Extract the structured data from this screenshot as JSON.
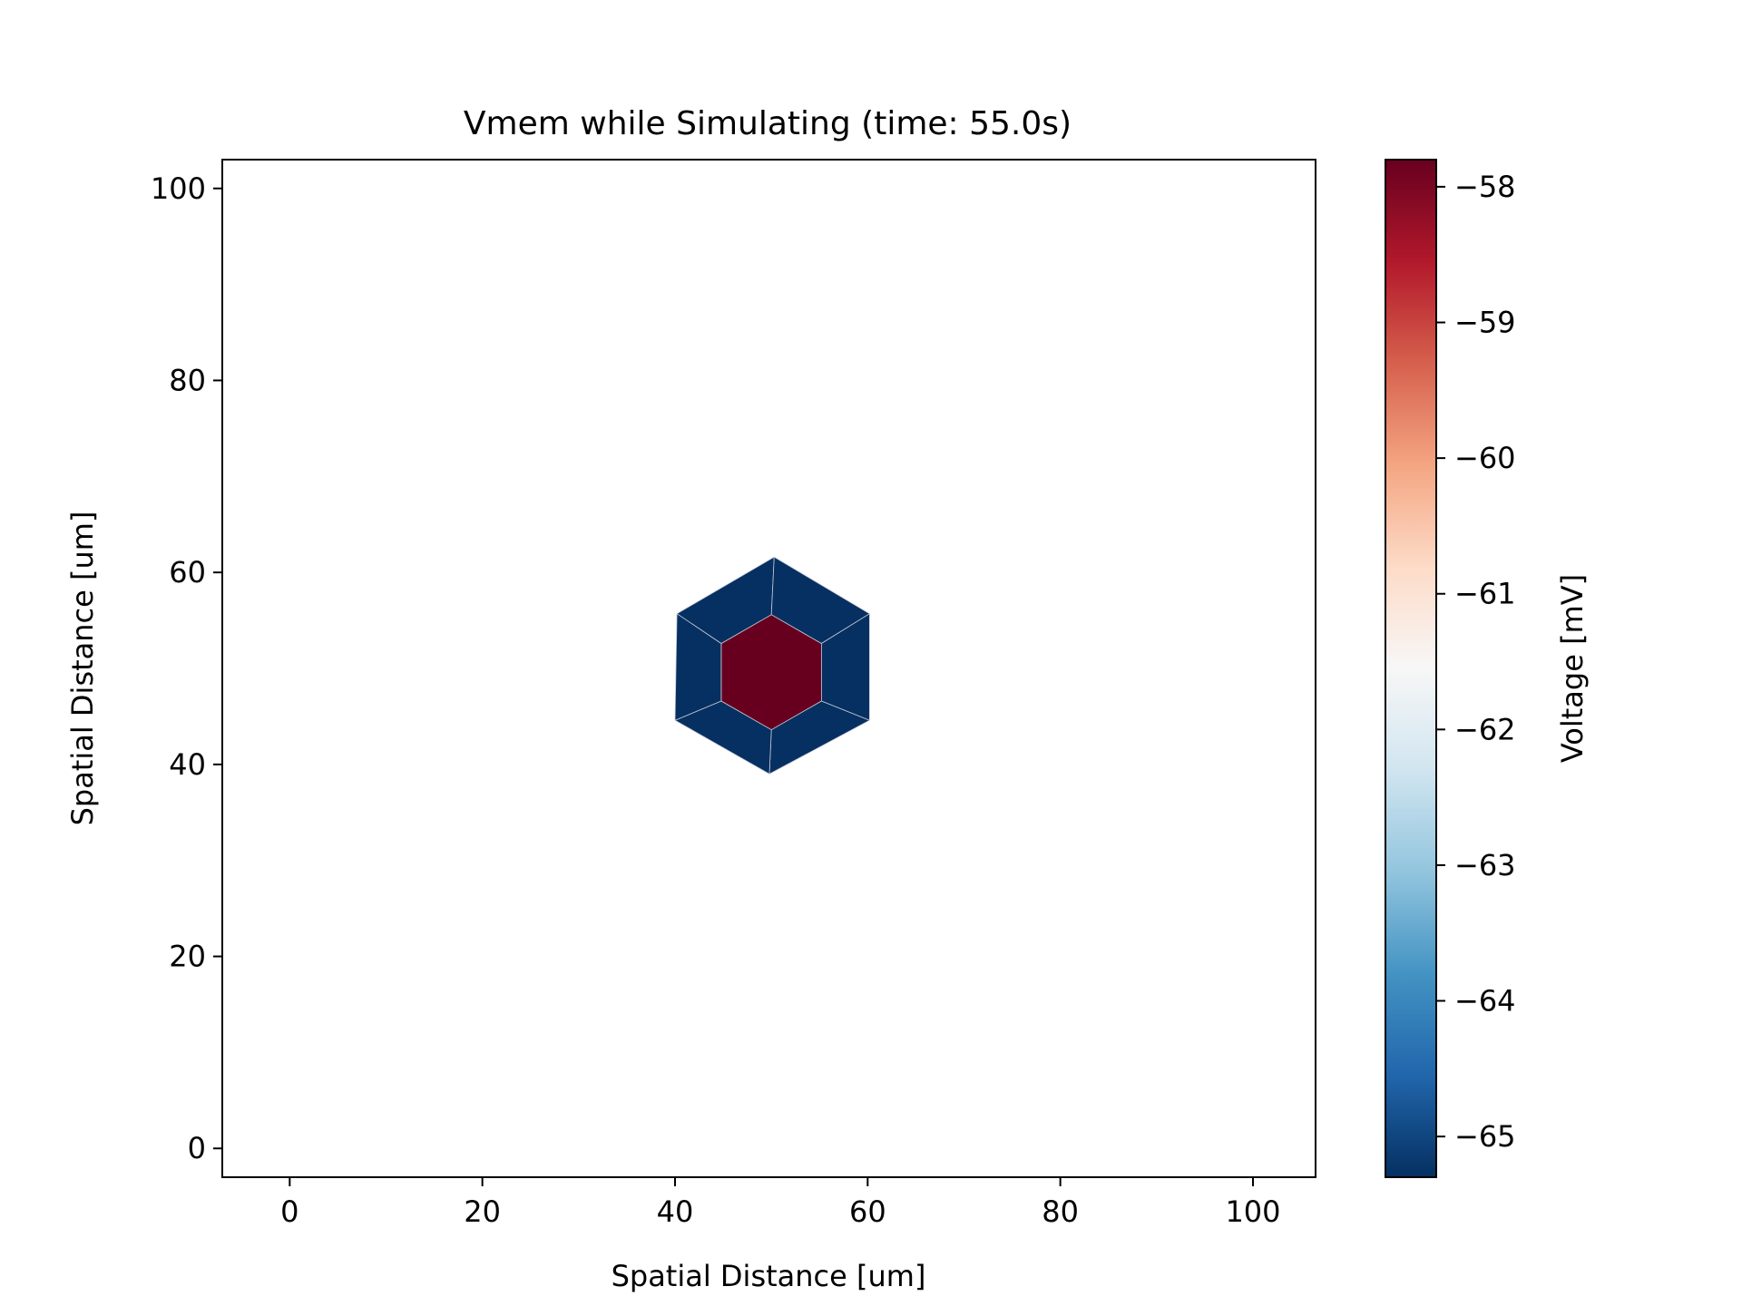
{
  "chart_data": {
    "type": "heatmap",
    "title": "Vmem while Simulating (time: 55.0s)",
    "xlabel": "Spatial Distance [um]",
    "ylabel": "Spatial Distance [um]",
    "xlim": [
      -7,
      106.5
    ],
    "ylim": [
      -3,
      103
    ],
    "xticks": [
      0,
      20,
      40,
      60,
      80,
      100
    ],
    "yticks": [
      0,
      20,
      40,
      60,
      80,
      100
    ],
    "grid": false,
    "cells": [
      {
        "name": "center",
        "value": -57.8,
        "polygon": [
          [
            50,
            55.6
          ],
          [
            55.2,
            52.6
          ],
          [
            55.2,
            46.6
          ],
          [
            50,
            43.6
          ],
          [
            44.8,
            46.6
          ],
          [
            44.8,
            52.6
          ]
        ]
      },
      {
        "name": "top-left",
        "value": -65.3,
        "polygon": [
          [
            50.3,
            61.6
          ],
          [
            50,
            55.6
          ],
          [
            44.8,
            52.6
          ],
          [
            40.2,
            55.7
          ]
        ]
      },
      {
        "name": "top-right",
        "value": -65.3,
        "polygon": [
          [
            50.3,
            61.6
          ],
          [
            60.2,
            55.7
          ],
          [
            55.2,
            52.6
          ],
          [
            50,
            55.6
          ]
        ]
      },
      {
        "name": "right",
        "value": -65.3,
        "polygon": [
          [
            60.2,
            55.7
          ],
          [
            60.2,
            44.6
          ],
          [
            55.2,
            46.6
          ],
          [
            55.2,
            52.6
          ]
        ]
      },
      {
        "name": "bottom-right",
        "value": -65.3,
        "polygon": [
          [
            60.2,
            44.6
          ],
          [
            49.8,
            39
          ],
          [
            50,
            43.6
          ],
          [
            55.2,
            46.6
          ]
        ]
      },
      {
        "name": "bottom-left",
        "value": -65.3,
        "polygon": [
          [
            49.8,
            39
          ],
          [
            40,
            44.6
          ],
          [
            44.8,
            46.6
          ],
          [
            50,
            43.6
          ]
        ]
      },
      {
        "name": "left",
        "value": -65.3,
        "polygon": [
          [
            40,
            44.6
          ],
          [
            40.2,
            55.7
          ],
          [
            44.8,
            52.6
          ],
          [
            44.8,
            46.6
          ]
        ]
      }
    ],
    "colorbar": {
      "label": "Voltage [mV]",
      "range": [
        -65.3,
        -57.8
      ],
      "ticks": [
        -58,
        -59,
        -60,
        -61,
        -62,
        -63,
        -64,
        -65
      ],
      "colormap": [
        "#053061",
        "#2166ac",
        "#4393c3",
        "#92c5de",
        "#d1e5f0",
        "#f7f7f7",
        "#fddbc7",
        "#f4a582",
        "#d6604d",
        "#b2182b",
        "#67001f"
      ]
    }
  }
}
